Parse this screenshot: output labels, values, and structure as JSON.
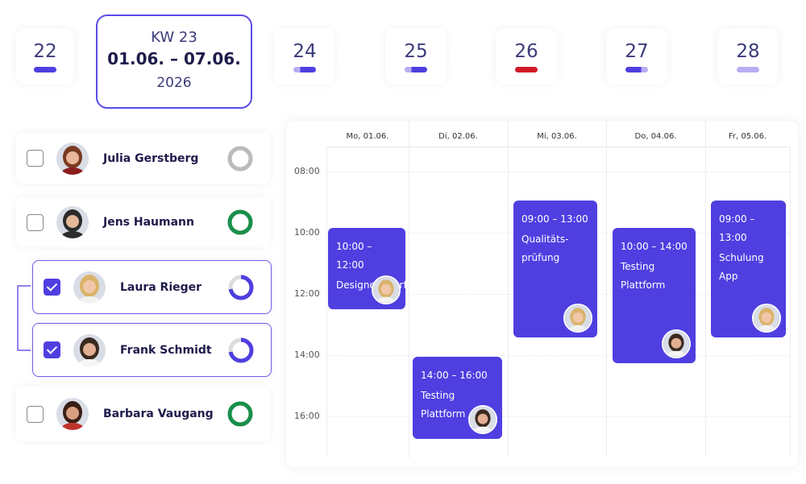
{
  "week_selector": {
    "weeks_before": [
      "22"
    ],
    "selected": {
      "label": "KW 23",
      "range": "01.06. – 07.06.",
      "year": "2026"
    },
    "weeks_after": [
      "24",
      "25",
      "26",
      "27",
      "28"
    ]
  },
  "people": [
    {
      "name": "Julia Gerstberg"
    },
    {
      "name": "Jens Haumann"
    },
    {
      "name": "Laura Rieger"
    },
    {
      "name": "Frank Schmidt"
    },
    {
      "name": "Barbara Vaugang"
    }
  ],
  "calendar": {
    "days": [
      "Mo, 01.06.",
      "Di, 02.06.",
      "Mi, 03.06.",
      "Do, 04.06.",
      "Fr, 05.06."
    ],
    "times": [
      "08:00",
      "10:00",
      "12:00",
      "14:00",
      "16:00"
    ],
    "events": [
      {
        "time": "10:00 – 12:00",
        "title": "Designentwurf"
      },
      {
        "time": "14:00 – 16:00",
        "title": "Testing Plattform"
      },
      {
        "time": "09:00 – 13:00",
        "title": "Qualitäts-prüfung"
      },
      {
        "time": "10:00 – 14:00",
        "title": "Testing Plattform"
      },
      {
        "time": "09:00 – 13:00",
        "title": "Schulung App"
      }
    ]
  }
}
